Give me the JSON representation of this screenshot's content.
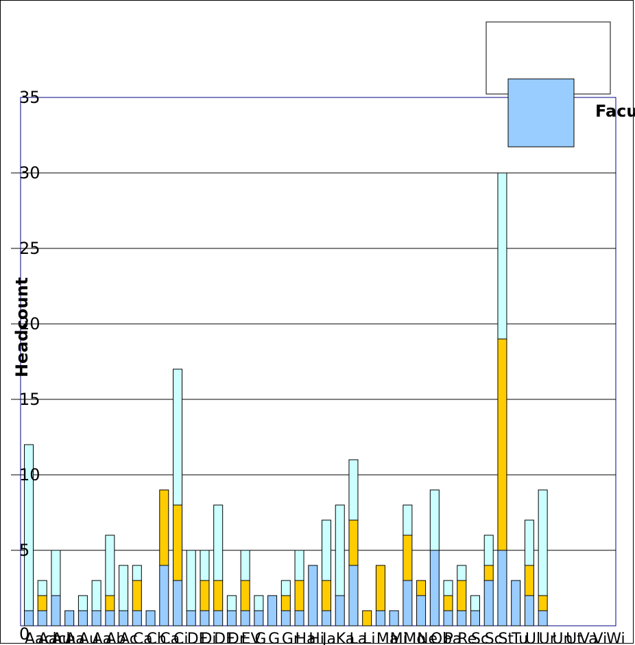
{
  "chart_data": {
    "type": "bar",
    "stacked": true,
    "ylabel": "Headcount",
    "xlabel": "",
    "ylim": [
      0,
      35
    ],
    "yticks": [
      0,
      5,
      10,
      15,
      20,
      25,
      30,
      35
    ],
    "grid": true,
    "legend_position": "top-right",
    "legend_entries": [
      "Facu"
    ],
    "colors": [
      "#99ccff",
      "#ffcc00",
      "#ccffff"
    ],
    "categories": [
      "Aach",
      "Aach",
      "Au",
      "Aa",
      "Au",
      "Aa",
      "Ab",
      "Ac",
      "Ca",
      "Ch",
      "Ca",
      "Ci",
      "DE",
      "Di",
      "DE",
      "Dr",
      "EV",
      "G",
      "G",
      "Gr",
      "Ha",
      "Hi",
      "Ja",
      "Ka",
      "La",
      "Li",
      "Ma",
      "Mi",
      "Mo",
      "Ne",
      "Ob",
      "Pa",
      "Re",
      "Sc",
      "Sc",
      "St",
      "Tu",
      "Ul",
      "Ur",
      "Un",
      "Ut",
      "Va",
      "Vi",
      "Wi"
    ],
    "series": [
      {
        "name": "Facu",
        "values": [
          1,
          1,
          2,
          1,
          1,
          1,
          1,
          1,
          1,
          1,
          4,
          3,
          1,
          1,
          1,
          1,
          1,
          1,
          2,
          1,
          1,
          4,
          1,
          2,
          4,
          0,
          1,
          1,
          3,
          2,
          5,
          1,
          1,
          1,
          3,
          5,
          3,
          2,
          1,
          0,
          0,
          0,
          0,
          0
        ]
      },
      {
        "values": [
          0,
          1,
          0,
          0,
          0,
          0,
          1,
          0,
          2,
          0,
          5,
          5,
          0,
          2,
          2,
          0,
          2,
          0,
          0,
          1,
          2,
          0,
          2,
          0,
          3,
          1,
          3,
          0,
          3,
          1,
          0,
          1,
          2,
          0,
          1,
          14,
          0,
          2,
          1,
          0,
          0,
          0,
          0,
          0
        ]
      },
      {
        "values": [
          11,
          1,
          3,
          0,
          1,
          2,
          4,
          3,
          1,
          0,
          0,
          9,
          4,
          2,
          5,
          1,
          2,
          1,
          0,
          1,
          2,
          0,
          4,
          6,
          4,
          0,
          0,
          0,
          2,
          0,
          4,
          1,
          1,
          1,
          2,
          11,
          0,
          3,
          7,
          0,
          0,
          0,
          0,
          0
        ]
      }
    ]
  }
}
